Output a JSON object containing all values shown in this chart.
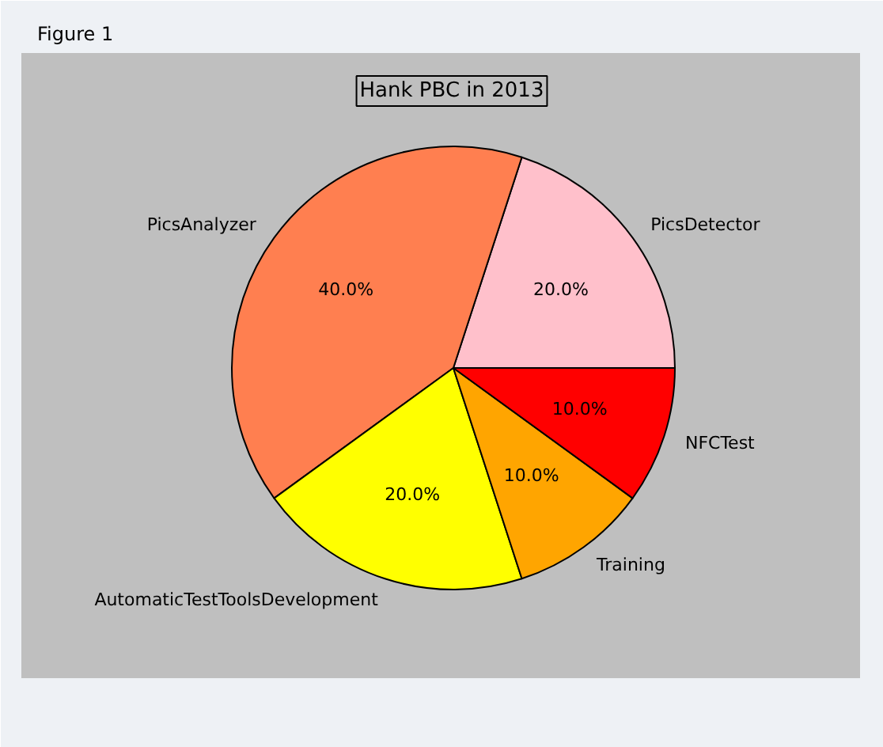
{
  "chart_data": {
    "type": "pie",
    "title": "Hank PBC in 2013",
    "categories": [
      "PicsDetector",
      "PicsAnalyzer",
      "AutomaticTestToolsDevelopment",
      "Training",
      "NFCTest"
    ],
    "values": [
      20,
      40,
      20,
      10,
      10
    ],
    "colors": [
      "#ffc0cb",
      "#ff7f50",
      "#ffff00",
      "#ffa500",
      "#ff0000"
    ],
    "value_labels": [
      "20.0%",
      "40.0%",
      "20.0%",
      "10.0%",
      "10.0%"
    ],
    "annotations": [
      "Figure 1"
    ]
  }
}
